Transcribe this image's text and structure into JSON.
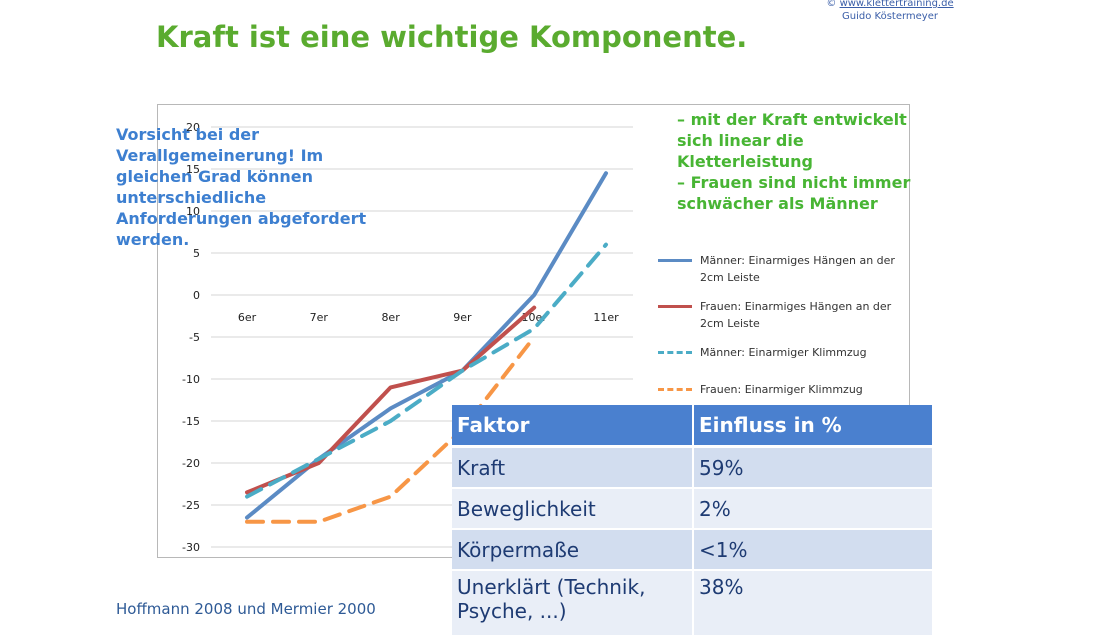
{
  "credit": {
    "symbol": "©",
    "url": "www.klettertraining.de",
    "author": "Guido Köstermeyer"
  },
  "title": "Kraft ist eine wichtige Komponente.",
  "note_blue": "Vorsicht bei der Verallgemeinerung! Im gleichen Grad können unterschiedliche Anforderungen abgefordert werden.",
  "note_green": [
    "– mit der Kraft entwickelt sich linear die Kletterleistung",
    "– Frauen sind nicht immer schwächer als Männer"
  ],
  "source": "Hoffmann 2008 und Mermier 2000",
  "chart_data": {
    "type": "line",
    "categories": [
      "6er",
      "7er",
      "8er",
      "9er",
      "10er",
      "11er"
    ],
    "ylim": [
      -30,
      20
    ],
    "yticks": [
      20,
      15,
      10,
      5,
      0,
      -5,
      -10,
      -15,
      -20,
      -25,
      -30
    ],
    "grid": true,
    "legend_position": "right",
    "series": [
      {
        "name": "Männer: Einarmiges Hängen an der 2cm Leiste",
        "color": "#5b8bc4",
        "style": "solid",
        "values": [
          -26.5,
          -19.5,
          -13.5,
          -9,
          0,
          14.5
        ]
      },
      {
        "name": "Frauen: Einarmiges Hängen an der 2cm Leiste",
        "color": "#c0504d",
        "style": "solid",
        "values": [
          -23.5,
          -20,
          -11,
          -9,
          -1.5,
          null
        ]
      },
      {
        "name": "Männer: Einarmiger Klimmzug",
        "color": "#4bacc6",
        "style": "dashed",
        "values": [
          -24,
          -19.5,
          -15,
          -9,
          -4,
          6
        ]
      },
      {
        "name": "Frauen: Einarmiger Klimmzug",
        "color": "#f79646",
        "style": "dashed",
        "values": [
          -27,
          -27,
          -24,
          -16,
          -5,
          null
        ]
      }
    ]
  },
  "table": {
    "headers": [
      "Faktor",
      "Einfluss in %"
    ],
    "rows": [
      [
        "Kraft",
        "59%"
      ],
      [
        "Beweglichkeit",
        "2%"
      ],
      [
        "Körpermaße",
        "<1%"
      ],
      [
        "Unerklärt (Technik, Psyche, ...)",
        "38%"
      ]
    ]
  }
}
